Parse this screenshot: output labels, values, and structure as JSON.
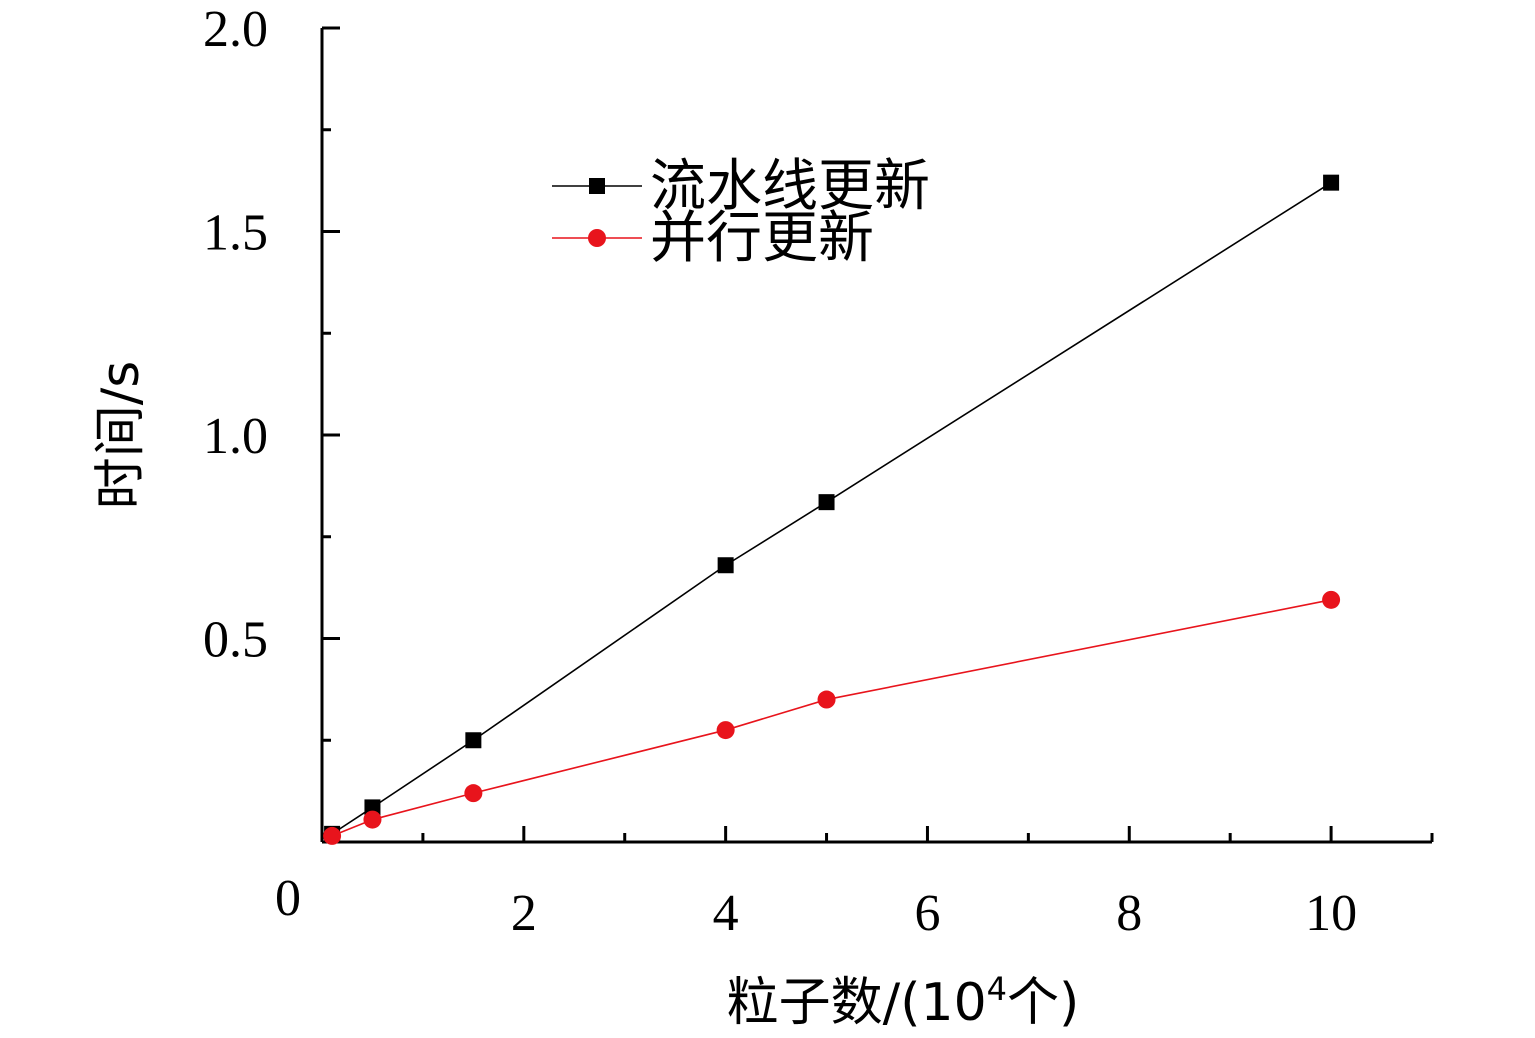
{
  "chart_data": {
    "type": "line",
    "title": "",
    "xlabel_prefix": "粒子数/(10",
    "xlabel_sup": "4",
    "xlabel_suffix": "个)",
    "ylabel": "时间/s",
    "xlim": [
      0,
      11
    ],
    "ylim": [
      0,
      2.0
    ],
    "x_ticks": [
      {
        "value": 0,
        "label": "0"
      },
      {
        "value": 2,
        "label": "2"
      },
      {
        "value": 4,
        "label": "4"
      },
      {
        "value": 6,
        "label": "6"
      },
      {
        "value": 8,
        "label": "8"
      },
      {
        "value": 10,
        "label": "10"
      }
    ],
    "x_minor_ticks": [
      1,
      3,
      5,
      7,
      9,
      11
    ],
    "y_ticks": [
      {
        "value": 0.5,
        "label": "0.5"
      },
      {
        "value": 1.0,
        "label": "1.0"
      },
      {
        "value": 1.5,
        "label": "1.5"
      },
      {
        "value": 2.0,
        "label": "2.0"
      }
    ],
    "y_minor_ticks": [
      0.25,
      0.75,
      1.25,
      1.75
    ],
    "grid": false,
    "legend_position": "top-center",
    "series": [
      {
        "name": "流水线更新",
        "color": "#000000",
        "marker": "square",
        "x": [
          0.1,
          0.5,
          1.5,
          4,
          5,
          10
        ],
        "y": [
          0.02,
          0.085,
          0.25,
          0.68,
          0.835,
          1.62
        ]
      },
      {
        "name": "并行更新",
        "color": "#e8141c",
        "marker": "circle",
        "x": [
          0.1,
          0.5,
          1.5,
          4,
          5,
          10
        ],
        "y": [
          0.015,
          0.055,
          0.12,
          0.275,
          0.35,
          0.595
        ]
      }
    ]
  }
}
